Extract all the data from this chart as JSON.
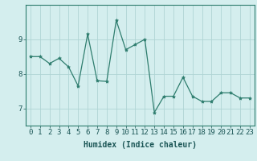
{
  "x": [
    0,
    1,
    2,
    3,
    4,
    5,
    6,
    7,
    8,
    9,
    10,
    11,
    12,
    13,
    14,
    15,
    16,
    17,
    18,
    19,
    20,
    21,
    22,
    23
  ],
  "y": [
    8.5,
    8.5,
    8.3,
    8.45,
    8.2,
    7.65,
    9.15,
    7.8,
    7.78,
    9.55,
    8.7,
    8.85,
    9.0,
    6.88,
    7.35,
    7.35,
    7.9,
    7.35,
    7.2,
    7.2,
    7.45,
    7.45,
    7.3,
    7.3
  ],
  "line_color": "#2e7d6e",
  "marker": "*",
  "marker_size": 3,
  "background_color": "#d4eeee",
  "grid_color": "#b0d4d4",
  "xlabel": "Humidex (Indice chaleur)",
  "yticks": [
    7,
    8,
    9
  ],
  "xlim": [
    -0.5,
    23.5
  ],
  "ylim": [
    6.5,
    10.0
  ],
  "xlabel_fontsize": 7,
  "tick_fontsize": 6.5,
  "ylabel_fontsize": 7
}
